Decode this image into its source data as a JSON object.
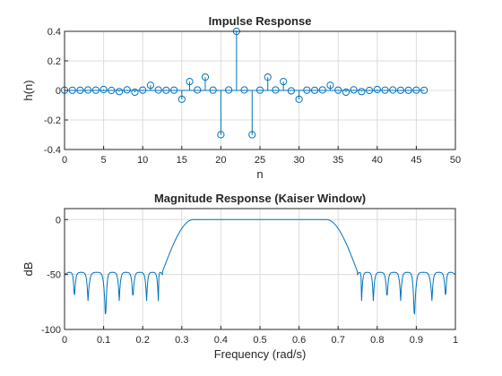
{
  "chart_data": [
    {
      "type": "stem",
      "title": "Impulse Response",
      "xlabel": "n",
      "ylabel": "h(n)",
      "xlim": [
        0,
        50
      ],
      "ylim": [
        -0.4,
        0.4
      ],
      "xticks": [
        0,
        5,
        10,
        15,
        20,
        25,
        30,
        35,
        40,
        45,
        50
      ],
      "yticks": [
        -0.4,
        -0.2,
        0,
        0.2,
        0.4
      ],
      "ytick_labels": [
        "-0.4",
        "-0.2",
        "0",
        "0.2",
        "0.4"
      ],
      "grid": true,
      "color": "#0072BD",
      "x": [
        0,
        1,
        2,
        3,
        4,
        5,
        6,
        7,
        8,
        9,
        10,
        11,
        12,
        13,
        14,
        15,
        16,
        17,
        18,
        19,
        20,
        21,
        22,
        23,
        24,
        25,
        26,
        27,
        28,
        29,
        30,
        31,
        32,
        33,
        34,
        35,
        36,
        37,
        38,
        39,
        40,
        41,
        42,
        43,
        44,
        45,
        46
      ],
      "y": [
        0.002,
        0.001,
        0.001,
        0.003,
        0.002,
        0.006,
        0.0,
        -0.008,
        0.004,
        -0.012,
        0.002,
        0.035,
        0.003,
        0.001,
        0.002,
        -0.06,
        0.06,
        0.003,
        0.09,
        0.002,
        -0.3,
        0.003,
        0.4,
        0.003,
        -0.3,
        0.002,
        0.09,
        0.003,
        0.06,
        -0.003,
        -0.06,
        0.002,
        0.001,
        0.003,
        0.035,
        0.002,
        -0.012,
        0.004,
        -0.008,
        0.0,
        0.006,
        0.002,
        0.003,
        0.001,
        0.001,
        0.002,
        0.001
      ]
    },
    {
      "type": "line",
      "title": "Magnitude Response (Kaiser Window)",
      "xlabel": "Frequency (rad/s)",
      "ylabel": "dB",
      "xlim": [
        0,
        1
      ],
      "ylim": [
        -100,
        10
      ],
      "xticks": [
        0,
        0.1,
        0.2,
        0.3,
        0.4,
        0.5,
        0.6,
        0.7,
        0.8,
        0.9,
        1
      ],
      "xtick_labels": [
        "0",
        "0.1",
        "0.2",
        "0.3",
        "0.4",
        "0.5",
        "0.6",
        "0.7",
        "0.8",
        "0.9",
        "1"
      ],
      "yticks": [
        -100,
        -50,
        0
      ],
      "ytick_labels": [
        "-100",
        "-50",
        "0"
      ],
      "grid": true,
      "color": "#0072BD",
      "band": {
        "transition_up": [
          0.25,
          0.33
        ],
        "transition_down": [
          0.67,
          0.75
        ],
        "passband_db": 0,
        "sidelobe_peak_db": -48,
        "null_db": -72,
        "deep_null_db": -92,
        "deep_nulls": [
          0.105,
          0.895
        ]
      },
      "nulls": [
        0.025,
        0.06,
        0.105,
        0.14,
        0.175,
        0.21,
        0.24,
        0.76,
        0.79,
        0.825,
        0.86,
        0.895,
        0.94,
        0.975
      ]
    }
  ]
}
